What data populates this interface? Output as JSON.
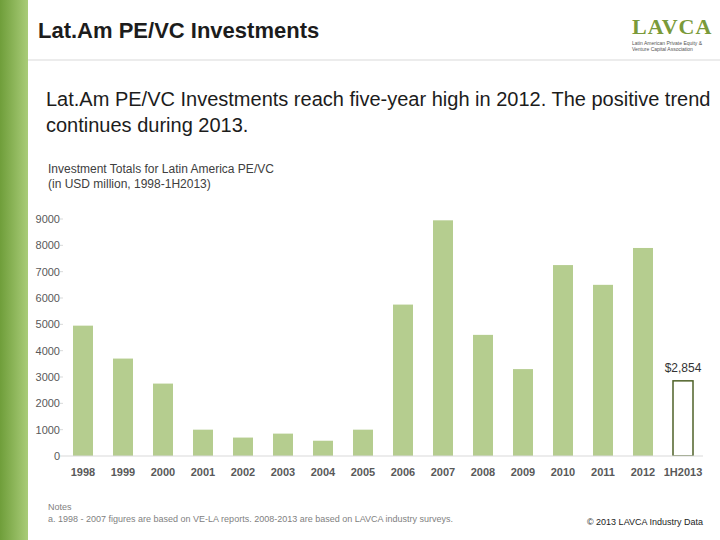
{
  "page": {
    "heading": "Lat.Am PE/VC Investments",
    "headline": "Lat.Am PE/VC Investments reach five-year high in 2012. The positive trend continues during 2013.",
    "logo": {
      "word": "LAVCA",
      "lines": [
        "Latin American Private Equity &",
        "Venture Capital Association"
      ]
    },
    "notes_heading": "Notes",
    "note": "a. 1998 - 2007 figures are based on VE-LA reports. 2008-2013 are based on LAVCA industry surveys.",
    "copyright": "© 2013 LAVCA Industry Data"
  },
  "chart_data": {
    "type": "bar",
    "title": "Investment Totals for Latin America PE/VC",
    "subtitle": "(in USD million, 1998-1H2013)",
    "categories": [
      "1998",
      "1999",
      "2000",
      "2001",
      "2002",
      "2003",
      "2004",
      "2005",
      "2006",
      "2007",
      "2008",
      "2009",
      "2010",
      "2011",
      "2012",
      "1H2013"
    ],
    "values": [
      4950,
      3700,
      2750,
      1000,
      700,
      850,
      580,
      1000,
      5750,
      8950,
      4600,
      3300,
      7250,
      6500,
      7900,
      2854
    ],
    "value_labels": [
      null,
      null,
      null,
      null,
      null,
      null,
      null,
      null,
      null,
      null,
      null,
      null,
      null,
      null,
      null,
      "$2,854"
    ],
    "colors": [
      "#b5cd8f",
      "#b5cd8f",
      "#b5cd8f",
      "#b5cd8f",
      "#b5cd8f",
      "#b5cd8f",
      "#b5cd8f",
      "#b5cd8f",
      "#b5cd8f",
      "#b5cd8f",
      "#b5cd8f",
      "#b5cd8f",
      "#b5cd8f",
      "#b5cd8f",
      "#b5cd8f",
      "#ffffff"
    ],
    "ylim": [
      0,
      9000
    ],
    "yticks": [
      0,
      1000,
      2000,
      3000,
      4000,
      5000,
      6000,
      7000,
      8000,
      9000
    ],
    "grid": false
  }
}
